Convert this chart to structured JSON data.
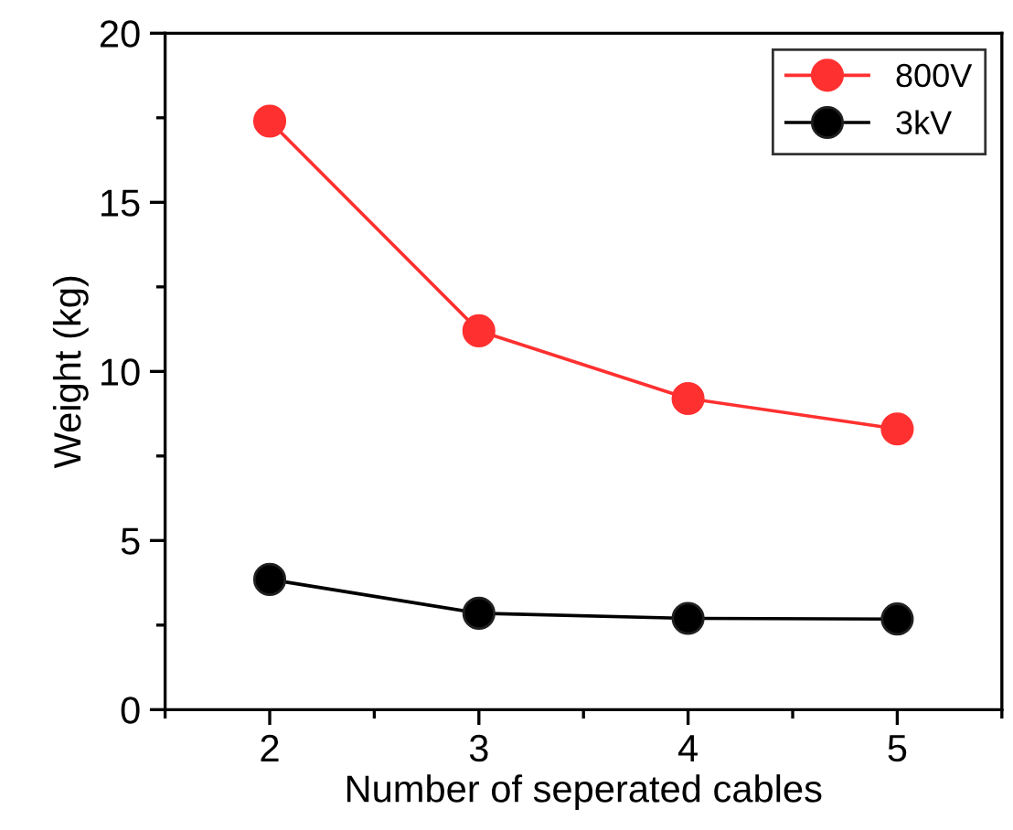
{
  "chart_data": {
    "type": "line",
    "xlabel": "Number of seperated cables",
    "ylabel": "Weight (kg)",
    "x": [
      2,
      3,
      4,
      5
    ],
    "series": [
      {
        "name": "800V",
        "color": "#ff3030",
        "values": [
          17.4,
          11.2,
          9.2,
          8.3
        ]
      },
      {
        "name": "3kV",
        "color": "#000000",
        "values": [
          3.85,
          2.85,
          2.7,
          2.68
        ]
      }
    ],
    "xlim": [
      1.5,
      5.5
    ],
    "xticks": [
      2,
      3,
      4,
      5
    ],
    "ylim": [
      0,
      20
    ],
    "yticks": [
      0,
      5,
      10,
      15,
      20
    ],
    "grid": false,
    "legend": "top right",
    "marker": "circle",
    "line_style": "solid"
  }
}
